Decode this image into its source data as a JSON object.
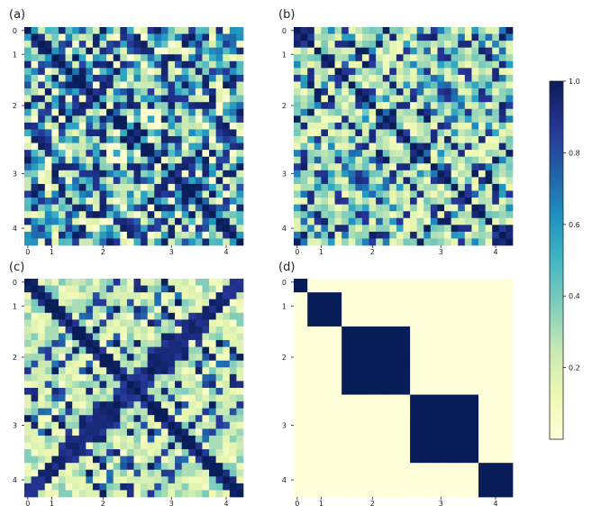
{
  "chart_data": [
    {
      "type": "heatmap",
      "panel_label": "(a)",
      "kind": "random",
      "n": 32,
      "seed": 11,
      "x_ticks": [
        {
          "label": "0",
          "index": 0.5
        },
        {
          "label": "1",
          "index": 4
        },
        {
          "label": "2",
          "index": 11.5
        },
        {
          "label": "3",
          "index": 21.5
        },
        {
          "label": "4",
          "index": 29.5
        }
      ],
      "y_ticks": [
        {
          "label": "0",
          "index": 0.5
        },
        {
          "label": "1",
          "index": 4
        },
        {
          "label": "2",
          "index": 11.5
        },
        {
          "label": "3",
          "index": 21.5
        },
        {
          "label": "4",
          "index": 29.5
        }
      ],
      "value_range": [
        0,
        1
      ]
    },
    {
      "type": "heatmap",
      "panel_label": "(b)",
      "kind": "blocky",
      "n": 32,
      "seed": 23,
      "x_ticks": [
        {
          "label": "0",
          "index": 0.5
        },
        {
          "label": "1",
          "index": 4
        },
        {
          "label": "2",
          "index": 11.5
        },
        {
          "label": "3",
          "index": 21.5
        },
        {
          "label": "4",
          "index": 29.5
        }
      ],
      "y_ticks": [
        {
          "label": "0",
          "index": 0.5
        },
        {
          "label": "1",
          "index": 4
        },
        {
          "label": "2",
          "index": 11.5
        },
        {
          "label": "3",
          "index": 21.5
        },
        {
          "label": "4",
          "index": 29.5
        }
      ],
      "value_range": [
        0,
        1
      ]
    },
    {
      "type": "heatmap",
      "panel_label": "(c)",
      "kind": "ring",
      "n": 32,
      "seed": 37,
      "x_ticks": [
        {
          "label": "0",
          "index": 0.5
        },
        {
          "label": "1",
          "index": 4
        },
        {
          "label": "2",
          "index": 11.5
        },
        {
          "label": "3",
          "index": 21.5
        },
        {
          "label": "4",
          "index": 29.5
        }
      ],
      "y_ticks": [
        {
          "label": "0",
          "index": 0.5
        },
        {
          "label": "1",
          "index": 4
        },
        {
          "label": "2",
          "index": 11.5
        },
        {
          "label": "3",
          "index": 21.5
        },
        {
          "label": "4",
          "index": 29.5
        }
      ],
      "value_range": [
        0,
        1
      ]
    },
    {
      "type": "heatmap",
      "panel_label": "(d)",
      "kind": "block-diagonal",
      "n": 32,
      "blocks": [
        {
          "start": 0,
          "end": 2,
          "value": 1.0
        },
        {
          "start": 2,
          "end": 7,
          "value": 1.0
        },
        {
          "start": 7,
          "end": 17,
          "value": 1.0
        },
        {
          "start": 17,
          "end": 27,
          "value": 1.0
        },
        {
          "start": 27,
          "end": 32,
          "value": 1.0
        }
      ],
      "background_value": 0.0,
      "x_ticks": [
        {
          "label": "0",
          "index": 0.5
        },
        {
          "label": "1",
          "index": 4
        },
        {
          "label": "2",
          "index": 11.5
        },
        {
          "label": "3",
          "index": 21.5
        },
        {
          "label": "4",
          "index": 29.5
        }
      ],
      "y_ticks": [
        {
          "label": "0",
          "index": 0.5
        },
        {
          "label": "1",
          "index": 4
        },
        {
          "label": "2",
          "index": 11.5
        },
        {
          "label": "3",
          "index": 21.5
        },
        {
          "label": "4",
          "index": 29.5
        }
      ],
      "value_range": [
        0,
        1
      ]
    }
  ],
  "colorbar": {
    "colormap": "YlGnBu",
    "ticks": [
      "0.2",
      "0.4",
      "0.6",
      "0.8",
      "1.0"
    ],
    "tick_values": [
      0.2,
      0.4,
      0.6,
      0.8,
      1.0
    ],
    "range": [
      0,
      1
    ]
  },
  "colormap_stops": [
    "#ffffd9",
    "#edf8b1",
    "#c7e9b4",
    "#7fcdbb",
    "#41b6c4",
    "#1d91c0",
    "#225ea8",
    "#253494",
    "#081d58"
  ]
}
